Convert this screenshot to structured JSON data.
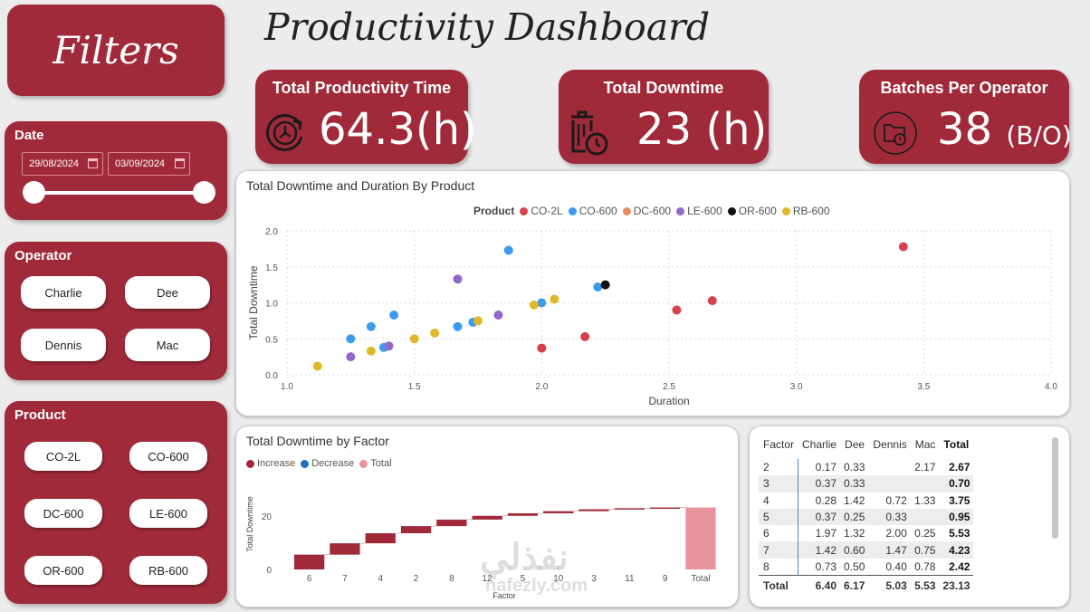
{
  "filters": {
    "title": "Filters"
  },
  "date_filter": {
    "label": "Date",
    "start": "29/08/2024",
    "end": "03/09/2024"
  },
  "operator_filter": {
    "label": "Operator",
    "options": [
      "Charlie",
      "Dee",
      "Dennis",
      "Mac"
    ]
  },
  "product_filter": {
    "label": "Product",
    "options": [
      "CO-2L",
      "CO-600",
      "DC-600",
      "LE-600",
      "OR-600",
      "RB-600"
    ]
  },
  "dashboard": {
    "title": "Productivity Dashboard"
  },
  "kpis": {
    "productivity": {
      "label": "Total Productivity Time",
      "value": "64.3(h)",
      "icon": "clock-refresh-icon"
    },
    "downtime": {
      "label": "Total Downtime",
      "value": "23",
      "unit": "(h)",
      "icon": "bin-clock-icon"
    },
    "batches": {
      "label": "Batches Per Operator",
      "value": "38",
      "unit": "(B/O)",
      "icon": "folder-clock-icon"
    }
  },
  "colors": {
    "maroon": "#a12a3a",
    "increase": "#a12a3a",
    "decrease": "#1f6fc2",
    "total": "#e8939c"
  },
  "scatter_card": {
    "title": "Total Downtime and Duration By Product",
    "legend_title": "Product"
  },
  "waterfall_card": {
    "title": "Total Downtime by Factor"
  },
  "matrix": {
    "headers": [
      "Factor",
      "Charlie",
      "Dee",
      "Dennis",
      "Mac",
      "Total"
    ],
    "rows": [
      [
        "2",
        "0.17",
        "0.33",
        "",
        "2.17",
        "2.67"
      ],
      [
        "3",
        "0.37",
        "0.33",
        "",
        "",
        "0.70"
      ],
      [
        "4",
        "0.28",
        "1.42",
        "0.72",
        "1.33",
        "3.75"
      ],
      [
        "5",
        "0.37",
        "0.25",
        "0.33",
        "",
        "0.95"
      ],
      [
        "6",
        "1.97",
        "1.32",
        "2.00",
        "0.25",
        "5.53"
      ],
      [
        "7",
        "1.42",
        "0.60",
        "1.47",
        "0.75",
        "4.23"
      ],
      [
        "8",
        "0.73",
        "0.50",
        "0.40",
        "0.78",
        "2.42"
      ]
    ],
    "total_row": [
      "Total",
      "6.40",
      "6.17",
      "5.03",
      "5.53",
      "23.13"
    ]
  },
  "watermark": {
    "arabic": "نفذلي",
    "latin": "nafezly.com"
  },
  "chart_data": [
    {
      "type": "scatter",
      "title": "Total Downtime and Duration By Product",
      "xlabel": "Duration",
      "ylabel": "Total Downtime",
      "xlim": [
        1.0,
        4.0
      ],
      "ylim": [
        0.0,
        2.0
      ],
      "xticks": [
        "1.0",
        "1.5",
        "2.0",
        "2.5",
        "3.0",
        "3.5",
        "4.0"
      ],
      "yticks": [
        "0.0",
        "0.5",
        "1.0",
        "1.5",
        "2.0"
      ],
      "grid": true,
      "legend": "top-center",
      "series": [
        {
          "name": "CO-2L",
          "color": "#d6404f",
          "points": [
            [
              2.0,
              0.37
            ],
            [
              2.17,
              0.53
            ],
            [
              2.53,
              0.9
            ],
            [
              2.67,
              1.03
            ],
            [
              3.42,
              1.78
            ]
          ]
        },
        {
          "name": "CO-600",
          "color": "#3d9bef",
          "points": [
            [
              1.25,
              0.5
            ],
            [
              1.33,
              0.67
            ],
            [
              1.38,
              0.38
            ],
            [
              1.42,
              0.83
            ],
            [
              1.67,
              0.67
            ],
            [
              1.73,
              0.73
            ],
            [
              1.87,
              1.73
            ],
            [
              2.0,
              1.0
            ],
            [
              2.22,
              1.22
            ]
          ]
        },
        {
          "name": "DC-600",
          "color": "#e88a63",
          "points": []
        },
        {
          "name": "LE-600",
          "color": "#8f68c9",
          "points": [
            [
              1.25,
              0.25
            ],
            [
              1.4,
              0.4
            ],
            [
              1.67,
              1.33
            ],
            [
              1.83,
              0.83
            ]
          ]
        },
        {
          "name": "OR-600",
          "color": "#111111",
          "points": [
            [
              2.25,
              1.25
            ]
          ]
        },
        {
          "name": "RB-600",
          "color": "#e0b82c",
          "points": [
            [
              1.12,
              0.12
            ],
            [
              1.33,
              0.33
            ],
            [
              1.5,
              0.5
            ],
            [
              1.58,
              0.58
            ],
            [
              1.75,
              0.75
            ],
            [
              1.97,
              0.97
            ],
            [
              2.05,
              1.05
            ]
          ]
        }
      ]
    },
    {
      "type": "bar",
      "subtype": "waterfall",
      "title": "Total Downtime by Factor",
      "ylabel": "Total Downtime",
      "xlabel": "Factor",
      "categories": [
        "6",
        "7",
        "4",
        "2",
        "8",
        "12",
        "5",
        "10",
        "3",
        "11",
        "9",
        "Total"
      ],
      "values": [
        5.53,
        4.23,
        3.75,
        2.67,
        2.42,
        1.4,
        0.95,
        0.8,
        0.7,
        0.4,
        0.28,
        23.13
      ],
      "yticks": [
        "0",
        "20"
      ],
      "legend": [
        {
          "name": "Increase",
          "color": "#a12a3a"
        },
        {
          "name": "Decrease",
          "color": "#1f6fc2"
        },
        {
          "name": "Total",
          "color": "#e8939c"
        }
      ]
    }
  ]
}
